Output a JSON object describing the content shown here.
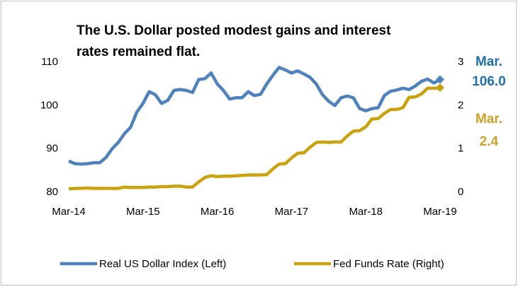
{
  "chart_data": {
    "type": "line",
    "title": [
      "The U.S. Dollar posted modest gains and interest",
      "rates remained flat."
    ],
    "categories": [
      "Mar-14",
      null,
      null,
      null,
      null,
      null,
      null,
      null,
      null,
      null,
      null,
      null,
      "Mar-15",
      null,
      null,
      null,
      null,
      null,
      null,
      null,
      null,
      null,
      null,
      null,
      "Mar-16",
      null,
      null,
      null,
      null,
      null,
      null,
      null,
      null,
      null,
      null,
      null,
      "Mar-17",
      null,
      null,
      null,
      null,
      null,
      null,
      null,
      null,
      null,
      null,
      null,
      "Mar-18",
      null,
      null,
      null,
      null,
      null,
      null,
      null,
      null,
      null,
      null,
      null,
      "Mar-19"
    ],
    "ylim": [
      80,
      110
    ],
    "yticks": [
      80,
      90,
      100,
      110
    ],
    "y2lim": [
      0,
      3
    ],
    "y2ticks": [
      0,
      1,
      2,
      3
    ],
    "legend": "bottom",
    "series": [
      {
        "name": "Real US Dollar Index (Left)",
        "color": "#4f81bd",
        "annotation": [
          "Mar.",
          "106.0"
        ],
        "annotation_color": "#1f6fa8",
        "values": [
          87.2,
          86.6,
          86.5,
          86.6,
          86.8,
          86.8,
          88,
          90,
          91.5,
          93.5,
          95,
          98.5,
          100.5,
          103.2,
          102.5,
          100.5,
          101.2,
          103.5,
          103.7,
          103.5,
          103,
          106,
          106.2,
          107.5,
          105,
          103.5,
          101.5,
          101.8,
          101.8,
          103.2,
          102.3,
          102.6,
          105,
          107,
          108.8,
          108.2,
          107.5,
          108,
          107.3,
          106.5,
          105,
          102.5,
          101,
          100,
          101.8,
          102.2,
          101.8,
          99.3,
          98.8,
          99.3,
          99.5,
          102.3,
          103.3,
          103.6,
          104,
          103.7,
          104.5,
          105.6,
          106.1,
          105.2,
          106.0
        ]
      },
      {
        "name": "Fed Funds Rate (Right)",
        "color": "#c9a20e",
        "axis": "y2",
        "annotation": [
          "Mar.",
          "2.4"
        ],
        "annotation_color": "#c9a227",
        "values": [
          0.08,
          0.09,
          0.09,
          0.1,
          0.09,
          0.09,
          0.09,
          0.09,
          0.09,
          0.12,
          0.11,
          0.11,
          0.11,
          0.12,
          0.12,
          0.13,
          0.13,
          0.14,
          0.14,
          0.12,
          0.12,
          0.24,
          0.34,
          0.38,
          0.36,
          0.37,
          0.37,
          0.38,
          0.39,
          0.4,
          0.4,
          0.4,
          0.41,
          0.54,
          0.65,
          0.66,
          0.79,
          0.9,
          0.91,
          1.04,
          1.15,
          1.16,
          1.15,
          1.16,
          1.16,
          1.3,
          1.41,
          1.42,
          1.51,
          1.69,
          1.7,
          1.82,
          1.91,
          1.91,
          1.95,
          2.19,
          2.2,
          2.27,
          2.4,
          2.4,
          2.41
        ]
      }
    ]
  }
}
